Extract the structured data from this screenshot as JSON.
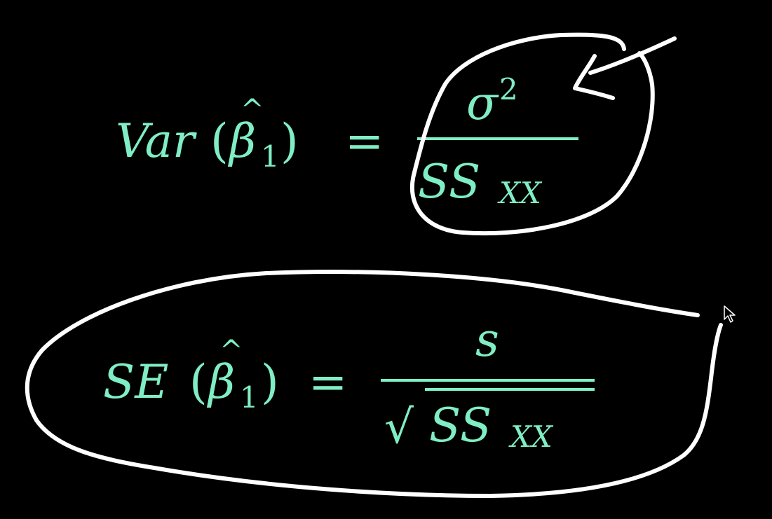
{
  "colors": {
    "background": "#000000",
    "math": "#80eec4",
    "ink": "#ffffff"
  },
  "formula_var": {
    "lhs_var": "Var",
    "lhs_paren_open": "(",
    "lhs_hat": "^",
    "lhs_beta": "β",
    "lhs_sub": "1",
    "lhs_paren_close": ")",
    "equals": "=",
    "numerator": "σ",
    "numerator_sup": "2",
    "denominator": "SS",
    "denominator_sub": "XX"
  },
  "formula_se": {
    "lhs_se": "SE",
    "lhs_paren_open": "(",
    "lhs_hat": "^",
    "lhs_beta": "β",
    "lhs_sub": "1",
    "lhs_paren_close": ")",
    "equals": "=",
    "numerator": "s",
    "radical": "√",
    "denominator": "SS",
    "denominator_sub": "XX"
  },
  "annotations": {
    "cursor_icon": "mouse-pointer-icon"
  }
}
